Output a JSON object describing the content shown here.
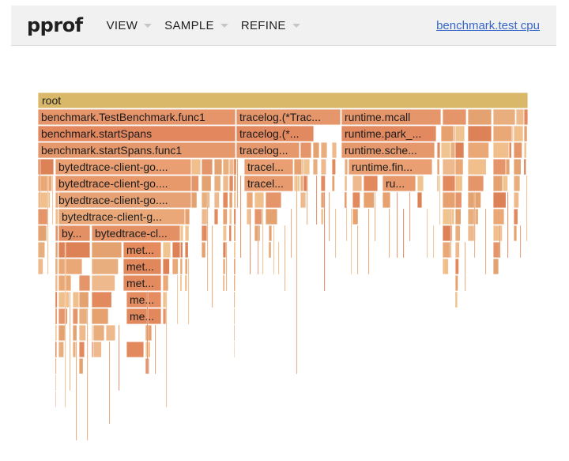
{
  "header": {
    "logo": "pprof",
    "menus": [
      {
        "label": "VIEW"
      },
      {
        "label": "SAMPLE"
      },
      {
        "label": "REFINE"
      }
    ],
    "profile_link": "benchmark.test cpu"
  },
  "flamegraph": {
    "root_label": "root",
    "frames": [
      {
        "label": "benchmark.TestBenchmark.func1"
      },
      {
        "label": "benchmark.startSpans"
      },
      {
        "label": "benchmark.startSpans.func1"
      },
      {
        "label": "bytedtrace-client-go...."
      },
      {
        "label": "bytedtrace-client-go...."
      },
      {
        "label": "bytedtrace-client-go...."
      },
      {
        "label": "bytedtrace-client-g..."
      },
      {
        "label": "by..."
      },
      {
        "label": "bytedtrace-cl..."
      },
      {
        "label": "met..."
      },
      {
        "label": "met..."
      },
      {
        "label": "met..."
      },
      {
        "label": "me..."
      },
      {
        "label": "me..."
      },
      {
        "label": "tracelog.(*Trac..."
      },
      {
        "label": "tracelog.(*..."
      },
      {
        "label": "tracelog..."
      },
      {
        "label": "tracel..."
      },
      {
        "label": "tracel..."
      },
      {
        "label": "runtime.mcall"
      },
      {
        "label": "runtime.park_..."
      },
      {
        "label": "runtime.sche..."
      },
      {
        "label": "runtime.fin..."
      },
      {
        "label": "ru..."
      }
    ]
  }
}
